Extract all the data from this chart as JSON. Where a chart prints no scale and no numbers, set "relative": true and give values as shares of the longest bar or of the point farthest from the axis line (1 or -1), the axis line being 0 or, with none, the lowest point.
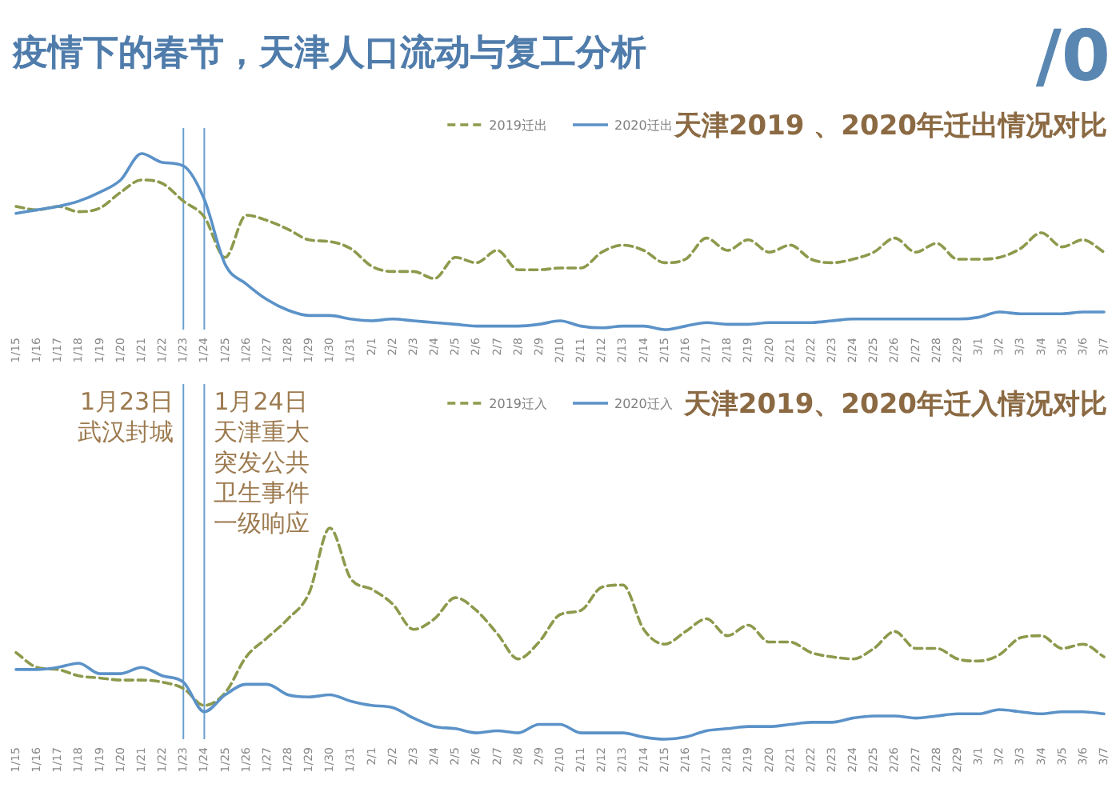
{
  "chart_data": [
    {
      "type": "line",
      "title": "天津2019 、2020年迁出情况对比",
      "annotations": [
        "疫情下的春节，天津人口流动与复工分析",
        "/0"
      ],
      "categories": [
        "1/15",
        "1/16",
        "1/17",
        "1/18",
        "1/19",
        "1/20",
        "1/21",
        "1/22",
        "1/23",
        "1/24",
        "1/25",
        "1/26",
        "1/27",
        "1/28",
        "1/29",
        "1/30",
        "1/31",
        "2/1",
        "2/2",
        "2/3",
        "2/4",
        "2/5",
        "2/6",
        "2/7",
        "2/8",
        "2/9",
        "2/10",
        "2/11",
        "2/12",
        "2/13",
        "2/14",
        "2/15",
        "2/16",
        "2/17",
        "2/18",
        "2/19",
        "2/20",
        "2/21",
        "2/22",
        "2/23",
        "2/24",
        "2/25",
        "2/26",
        "2/27",
        "2/28",
        "2/29",
        "3/1",
        "3/2",
        "3/3",
        "3/4",
        "3/5",
        "3/6",
        "3/7"
      ],
      "relative": true,
      "legend": "top",
      "marker": "none",
      "series": [
        {
          "name": "2019迁出",
          "color": "#8c9a4c",
          "line_style": "dashed",
          "values": [
            0.7,
            0.68,
            0.7,
            0.67,
            0.69,
            0.78,
            0.85,
            0.83,
            0.73,
            0.64,
            0.41,
            0.65,
            0.62,
            0.57,
            0.51,
            0.5,
            0.46,
            0.36,
            0.33,
            0.33,
            0.29,
            0.41,
            0.38,
            0.45,
            0.34,
            0.34,
            0.35,
            0.35,
            0.44,
            0.48,
            0.45,
            0.38,
            0.4,
            0.52,
            0.45,
            0.51,
            0.44,
            0.48,
            0.4,
            0.38,
            0.4,
            0.44,
            0.52,
            0.44,
            0.49,
            0.4,
            0.4,
            0.41,
            0.46,
            0.55,
            0.47,
            0.51,
            0.44
          ]
        },
        {
          "name": "2020迁出",
          "color": "#5b92c8",
          "line_style": "solid",
          "values": [
            0.66,
            0.68,
            0.7,
            0.73,
            0.78,
            0.85,
            1,
            0.95,
            0.93,
            0.74,
            0.37,
            0.26,
            0.17,
            0.11,
            0.08,
            0.08,
            0.06,
            0.05,
            0.06,
            0.05,
            0.04,
            0.03,
            0.02,
            0.02,
            0.02,
            0.03,
            0.05,
            0.02,
            0.01,
            0.02,
            0.02,
            0,
            0.02,
            0.04,
            0.03,
            0.03,
            0.04,
            0.04,
            0.04,
            0.05,
            0.06,
            0.06,
            0.06,
            0.06,
            0.06,
            0.06,
            0.07,
            0.1,
            0.09,
            0.09,
            0.09,
            0.1,
            0.1
          ]
        }
      ],
      "ref_lines": [
        {
          "axis": "x",
          "value": "1/23",
          "color": "#6a9fd0"
        },
        {
          "axis": "x",
          "value": "1/24",
          "color": "#6a9fd0"
        }
      ]
    },
    {
      "type": "line",
      "title": "天津2019、2020年迁入情况对比",
      "categories": [
        "1/15",
        "1/16",
        "1/17",
        "1/18",
        "1/19",
        "1/20",
        "1/21",
        "1/22",
        "1/23",
        "1/24",
        "1/25",
        "1/26",
        "1/27",
        "1/28",
        "1/29",
        "1/30",
        "1/31",
        "2/1",
        "2/2",
        "2/3",
        "2/4",
        "2/5",
        "2/6",
        "2/7",
        "2/8",
        "2/9",
        "2/10",
        "2/11",
        "2/12",
        "2/13",
        "2/14",
        "2/15",
        "2/16",
        "2/17",
        "2/18",
        "2/19",
        "2/20",
        "2/21",
        "2/22",
        "2/23",
        "2/24",
        "2/25",
        "2/26",
        "2/27",
        "2/28",
        "2/29",
        "3/1",
        "3/2",
        "3/3",
        "3/4",
        "3/5",
        "3/6",
        "3/7"
      ],
      "relative": true,
      "legend": "top",
      "marker": "none",
      "series": [
        {
          "name": "2019迁入",
          "color": "#8c9a4c",
          "line_style": "dashed",
          "values": [
            0.41,
            0.34,
            0.33,
            0.3,
            0.29,
            0.28,
            0.28,
            0.27,
            0.24,
            0.16,
            0.22,
            0.39,
            0.48,
            0.57,
            0.69,
            1,
            0.76,
            0.71,
            0.64,
            0.52,
            0.57,
            0.67,
            0.61,
            0.5,
            0.38,
            0.46,
            0.59,
            0.61,
            0.72,
            0.73,
            0.52,
            0.45,
            0.51,
            0.57,
            0.49,
            0.54,
            0.46,
            0.46,
            0.41,
            0.39,
            0.38,
            0.43,
            0.51,
            0.43,
            0.43,
            0.38,
            0.37,
            0.4,
            0.48,
            0.49,
            0.43,
            0.45,
            0.39
          ]
        },
        {
          "name": "2020迁入",
          "color": "#5b92c8",
          "line_style": "solid",
          "values": [
            0.33,
            0.33,
            0.34,
            0.36,
            0.31,
            0.31,
            0.34,
            0.3,
            0.27,
            0.13,
            0.21,
            0.26,
            0.26,
            0.21,
            0.2,
            0.21,
            0.18,
            0.16,
            0.15,
            0.1,
            0.06,
            0.05,
            0.03,
            0.04,
            0.03,
            0.07,
            0.07,
            0.03,
            0.03,
            0.03,
            0.01,
            0,
            0.01,
            0.04,
            0.05,
            0.06,
            0.06,
            0.07,
            0.08,
            0.08,
            0.1,
            0.11,
            0.11,
            0.1,
            0.11,
            0.12,
            0.12,
            0.14,
            0.13,
            0.12,
            0.13,
            0.13,
            0.12
          ]
        }
      ],
      "ref_lines": [
        {
          "axis": "x",
          "value": "1/23",
          "color": "#6a9fd0",
          "label": "1月23日武汉封城"
        },
        {
          "axis": "x",
          "value": "1/24",
          "color": "#6a9fd0",
          "label": "1月24日天津重大突发公共卫生事件一级响应"
        }
      ]
    }
  ]
}
